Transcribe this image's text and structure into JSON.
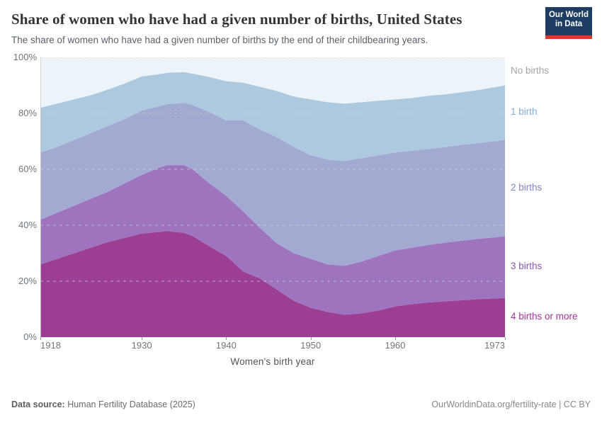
{
  "header": {
    "title": "Share of women who have had a given number of births, United States",
    "subtitle": "The share of women who have had a given number of births by the end of their childbearing years.",
    "logo": {
      "line1": "Our World",
      "line2": "in Data"
    }
  },
  "chart_data": {
    "type": "area",
    "stacked": true,
    "title": "Share of women who have had a given number of births, United States",
    "xlabel": "Women's birth year",
    "ylabel": "",
    "unit": "%",
    "xlim": [
      1918,
      1973
    ],
    "ylim": [
      0,
      100
    ],
    "x_ticks": [
      1918,
      1930,
      1940,
      1950,
      1960,
      1973
    ],
    "y_ticks": [
      0,
      20,
      40,
      60,
      80,
      100
    ],
    "grid": true,
    "legend_position": "right",
    "x": [
      1918,
      1920,
      1922,
      1924,
      1926,
      1928,
      1930,
      1932,
      1933,
      1935,
      1936,
      1938,
      1940,
      1942,
      1944,
      1946,
      1948,
      1950,
      1952,
      1954,
      1956,
      1958,
      1960,
      1962,
      1964,
      1966,
      1968,
      1970,
      1973
    ],
    "series": [
      {
        "name": "4 births or more",
        "color": "#9c3d96",
        "label_color": "#a23699",
        "values": [
          26,
          28,
          30,
          32,
          34,
          35.5,
          37,
          37.6,
          37.9,
          37.3,
          36.2,
          32.5,
          29,
          23.5,
          21,
          17,
          13,
          10.5,
          9,
          8,
          8.5,
          9.5,
          11,
          11.8,
          12.4,
          12.8,
          13.2,
          13.6,
          14
        ]
      },
      {
        "name": "3 births",
        "color": "#9e74bf",
        "label_color": "#8a57b0",
        "values": [
          16,
          16.5,
          17,
          17.5,
          18,
          19.5,
          21,
          22.9,
          23.6,
          24.2,
          23.8,
          22.5,
          21.5,
          21.5,
          18,
          16.5,
          17,
          17.5,
          17,
          17.5,
          18.5,
          19.5,
          20,
          20.2,
          20.6,
          21,
          21.3,
          21.6,
          22
        ]
      },
      {
        "name": "2 births",
        "color": "#a3aad1",
        "label_color": "#7f87c3",
        "values": [
          24,
          23.5,
          23.5,
          23.5,
          23.5,
          23,
          23,
          22,
          21.8,
          22.3,
          23,
          25.5,
          27,
          32.5,
          35.2,
          38,
          38,
          37,
          37.5,
          37.5,
          37,
          36,
          35,
          34.6,
          34.3,
          34.2,
          34.3,
          34.2,
          34.5
        ]
      },
      {
        "name": "1 birth",
        "color": "#adc9e0",
        "label_color": "#83aad1",
        "values": [
          16,
          15.5,
          14.5,
          13.5,
          13,
          12.7,
          12.2,
          11.5,
          11.2,
          10.9,
          11.2,
          12.5,
          14,
          13.5,
          15.3,
          16.5,
          18,
          20,
          20.5,
          20.5,
          20,
          19.5,
          19,
          18.9,
          19,
          18.8,
          18.8,
          19,
          19.5
        ]
      },
      {
        "name": "No births",
        "color": "#edf4f9",
        "label_color": "#a4a5a3",
        "values": [
          18,
          16.5,
          15,
          13.5,
          11.5,
          9.3,
          6.8,
          6,
          5.5,
          5.3,
          5.8,
          7,
          8.5,
          9,
          10.5,
          12,
          14,
          15,
          16,
          16.5,
          16,
          15.5,
          15,
          14.5,
          13.7,
          13.2,
          12.4,
          11.6,
          10
        ]
      }
    ]
  },
  "footer": {
    "datasource_label": "Data source:",
    "datasource_value": " Human Fertility Database (2025)",
    "right_text": "OurWorldinData.org/fertility-rate | CC BY"
  },
  "colors": {
    "logo_bg": "#1d3d63",
    "logo_bar": "#d93a2d",
    "gridline": "#cfcfcf",
    "axis_text": "#6d777e",
    "tick_mark": "#9aa0a5",
    "axis_line": "#c8c8c8"
  }
}
